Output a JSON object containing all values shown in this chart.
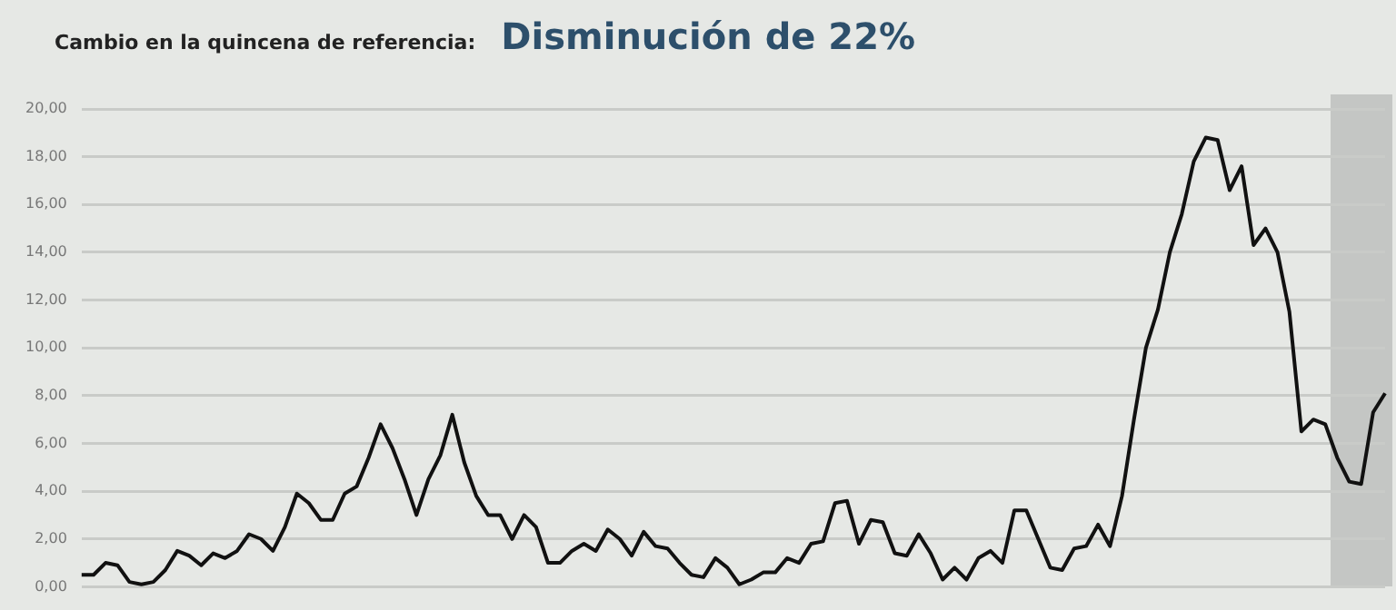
{
  "chart_data": {
    "type": "line",
    "title": "Cambio en la quincena de referencia:",
    "subtitle": "Disminución de 22%",
    "categories": [
      null,
      null,
      null,
      null,
      null,
      null,
      null,
      null,
      null,
      null,
      null,
      null,
      null,
      null,
      null,
      null,
      null,
      null,
      null,
      null,
      null,
      null,
      null,
      null,
      null,
      null,
      null,
      null,
      null,
      null,
      null,
      null,
      null,
      null,
      null,
      null,
      null,
      null,
      null,
      null,
      null,
      null,
      null,
      null,
      null,
      null,
      null,
      null,
      null,
      null,
      null,
      null,
      null,
      null,
      null,
      null,
      null,
      null,
      null,
      null,
      null,
      null,
      null,
      null,
      null,
      null,
      null,
      null,
      null,
      null,
      null,
      null,
      null,
      null,
      null,
      null,
      null,
      null,
      null,
      null,
      null,
      null,
      null,
      null,
      null,
      null,
      null,
      null,
      null,
      null,
      null,
      null,
      null,
      null,
      null,
      null,
      null,
      null,
      null,
      null,
      null,
      null,
      null,
      null,
      null,
      null,
      null,
      null,
      null,
      null
    ],
    "series": [
      {
        "color": "#111111",
        "values": [
          0.5,
          0.5,
          1.0,
          0.9,
          0.2,
          0.1,
          0.2,
          0.7,
          1.5,
          1.3,
          0.9,
          1.4,
          1.2,
          1.5,
          2.2,
          2.0,
          1.5,
          2.5,
          3.9,
          3.5,
          2.8,
          2.8,
          3.9,
          4.2,
          5.4,
          6.8,
          5.8,
          4.5,
          3.0,
          4.5,
          5.5,
          7.2,
          5.2,
          3.8,
          3.0,
          3.0,
          2.0,
          3.0,
          2.5,
          1.0,
          1.0,
          1.5,
          1.8,
          1.5,
          2.4,
          2.0,
          1.3,
          2.3,
          1.7,
          1.6,
          1.0,
          0.5,
          0.4,
          1.2,
          0.8,
          0.1,
          0.3,
          0.6,
          0.6,
          1.2,
          1.0,
          1.8,
          1.9,
          3.5,
          3.6,
          1.8,
          2.8,
          2.7,
          1.4,
          1.3,
          2.2,
          1.4,
          0.3,
          0.8,
          0.3,
          1.2,
          1.5,
          1.0,
          3.2,
          3.2,
          2.0,
          0.8,
          0.7,
          1.6,
          1.7,
          2.6,
          1.7,
          3.8,
          7.0,
          10.0,
          11.6,
          14.0,
          15.6,
          17.8,
          18.8,
          18.7,
          16.6,
          17.6,
          14.3,
          15.0,
          14.0,
          11.5,
          6.5,
          7.0,
          6.8,
          5.4,
          4.4,
          4.3,
          7.3,
          8.1
        ]
      }
    ],
    "ylim": [
      0,
      20
    ],
    "yticks": [
      {
        "value": 0,
        "label": "0,00"
      },
      {
        "value": 2,
        "label": "2,00"
      },
      {
        "value": 4,
        "label": "4,00"
      },
      {
        "value": 6,
        "label": "6,00"
      },
      {
        "value": 8,
        "label": "8,00"
      },
      {
        "value": 10,
        "label": "10,00"
      },
      {
        "value": 12,
        "label": "12,00"
      },
      {
        "value": 14,
        "label": "14,00"
      },
      {
        "value": 16,
        "label": "16,00"
      },
      {
        "value": 18,
        "label": "18,00"
      },
      {
        "value": 20,
        "label": "20,00"
      }
    ],
    "grid": "y",
    "tick_labels": "y",
    "marker": "none",
    "line_style": "solid",
    "legend": false
  }
}
